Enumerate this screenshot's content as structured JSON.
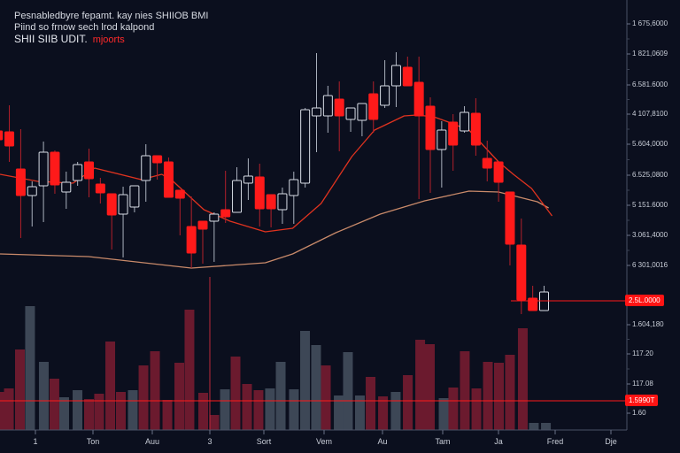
{
  "header": {
    "line1": "Pesnabledbyre fepamt. kay nies SHIIOB BMI",
    "line2": "Piind so frnow sech lrod kalpond",
    "symbol": "SHII SIIB UDIT.",
    "accent_text": "mjoorts"
  },
  "colors": {
    "background": "#0b0f1e",
    "up": "#d8dde6",
    "down": "#ff1a1a",
    "volume_up": "#3d4756",
    "volume_down": "#6b1a2e",
    "ma_short": "#e0331f",
    "ma_long": "#c98a6a",
    "price_line": "#ff1a1a"
  },
  "chart_data": {
    "type": "candlestick",
    "title": "",
    "xlabel": "",
    "ylabel": "",
    "grid": false,
    "ylim": [
      0,
      486
    ],
    "y_tick_labels": [
      "1 675,6000",
      "1 821,0609",
      "6.581.6000",
      "4 107,8100",
      "5.604,0000",
      "6.525,0800",
      "5 151.6000",
      "3.061,4000",
      "6 301,0016",
      "1.604,180",
      "117.20",
      "117.08",
      "1.60"
    ],
    "x_tick_labels": [
      "1",
      "Ton",
      "Auu",
      "3",
      "Sort",
      "Vem",
      "Au",
      "Tam",
      "Ja",
      "Fred",
      "Dje"
    ],
    "current_price_label": "2.5L.0000",
    "current_price": 146,
    "volume_level_label": "1.5990T",
    "candles": [
      [
        338,
        346,
        321,
        328
      ],
      [
        337,
        367,
        303,
        321
      ],
      [
        295,
        340,
        217,
        265
      ],
      [
        265,
        281,
        230,
        275
      ],
      [
        276,
        326,
        235,
        314
      ],
      [
        314,
        316,
        267,
        277
      ],
      [
        269,
        292,
        250,
        280
      ],
      [
        282,
        303,
        276,
        300
      ],
      [
        303,
        318,
        263,
        284
      ],
      [
        278,
        285,
        256,
        268
      ],
      [
        267,
        267,
        204,
        243
      ],
      [
        244,
        275,
        195,
        266
      ],
      [
        252,
        276,
        246,
        276
      ],
      [
        282,
        323,
        258,
        310
      ],
      [
        310,
        310,
        283,
        302
      ],
      [
        303,
        308,
        263,
        263
      ],
      [
        271,
        271,
        220,
        262
      ],
      [
        230,
        264,
        183,
        200
      ],
      [
        236,
        236,
        188,
        227
      ],
      [
        236,
        246,
        190,
        244
      ],
      [
        249,
        293,
        234,
        241
      ],
      [
        246,
        297,
        246,
        282
      ],
      [
        279,
        307,
        260,
        287
      ],
      [
        286,
        301,
        230,
        250
      ],
      [
        266,
        266,
        229,
        250
      ],
      [
        249,
        274,
        233,
        267
      ],
      [
        265,
        292,
        233,
        283
      ],
      [
        279,
        364,
        274,
        362
      ],
      [
        355,
        426,
        314,
        364
      ],
      [
        355,
        389,
        336,
        378
      ],
      [
        374,
        394,
        315,
        355
      ],
      [
        351,
        364,
        337,
        364
      ],
      [
        350,
        369,
        332,
        369
      ],
      [
        380,
        394,
        336,
        351
      ],
      [
        367,
        418,
        364,
        389
      ],
      [
        389,
        427,
        365,
        412
      ],
      [
        410,
        422,
        389,
        389
      ],
      [
        393,
        422,
        261,
        355
      ],
      [
        366,
        376,
        268,
        317
      ],
      [
        317,
        349,
        274,
        339
      ],
      [
        348,
        357,
        293,
        322
      ],
      [
        338,
        366,
        336,
        359
      ],
      [
        358,
        375,
        310,
        322
      ],
      [
        307,
        327,
        281,
        296
      ],
      [
        303,
        303,
        258,
        280
      ],
      [
        269,
        269,
        186,
        210
      ],
      [
        209,
        239,
        131,
        147
      ],
      [
        149,
        163,
        135,
        135
      ],
      [
        135,
        163,
        135,
        156
      ]
    ],
    "ma_short": [
      [
        0.18,
        289
      ],
      [
        3.5,
        281
      ],
      [
        6.6,
        279
      ],
      [
        8.5,
        296
      ],
      [
        12.6,
        283
      ],
      [
        14.4,
        289
      ],
      [
        15.4,
        281
      ],
      [
        18.1,
        249
      ],
      [
        20.4,
        236
      ],
      [
        23.5,
        224
      ],
      [
        25.9,
        228
      ],
      [
        28.4,
        256
      ],
      [
        31.1,
        309
      ],
      [
        33.1,
        339
      ],
      [
        35.7,
        355
      ],
      [
        36.8,
        356
      ],
      [
        38.3,
        354
      ],
      [
        39.6,
        348
      ],
      [
        41.4,
        339
      ],
      [
        42.7,
        321
      ],
      [
        44,
        303
      ],
      [
        45.3,
        289
      ],
      [
        46.9,
        273
      ],
      [
        48.7,
        242
      ]
    ],
    "ma_long": [
      [
        0.18,
        199
      ],
      [
        7.96,
        196
      ],
      [
        17,
        183
      ],
      [
        23.5,
        189
      ],
      [
        25.9,
        199
      ],
      [
        29.7,
        223
      ],
      [
        33.6,
        244
      ],
      [
        37.5,
        259
      ],
      [
        41.4,
        270
      ],
      [
        44,
        269
      ],
      [
        47.4,
        258
      ],
      [
        48.4,
        251
      ]
    ],
    "volume_level": 33,
    "volumes": [
      [
        0.3,
        43,
        "d"
      ],
      [
        0.96,
        47,
        "d"
      ],
      [
        1.93,
        91,
        "d"
      ],
      [
        2.82,
        140,
        "u"
      ],
      [
        4.03,
        77,
        "u"
      ],
      [
        4.96,
        58,
        "d"
      ],
      [
        5.82,
        37,
        "u"
      ],
      [
        6.99,
        45,
        "u"
      ],
      [
        8.0,
        35,
        "d"
      ],
      [
        8.89,
        41,
        "d"
      ],
      [
        9.87,
        100,
        "d"
      ],
      [
        10.8,
        43,
        "d"
      ],
      [
        11.85,
        45,
        "u"
      ],
      [
        12.79,
        73,
        "d"
      ],
      [
        13.8,
        89,
        "d"
      ],
      [
        14.89,
        34,
        "d"
      ],
      [
        15.94,
        76,
        "d"
      ],
      [
        16.83,
        136,
        "d"
      ],
      [
        18.04,
        42,
        "d"
      ],
      [
        19.01,
        17,
        "d"
      ],
      [
        19.95,
        46,
        "u"
      ],
      [
        20.88,
        83,
        "d"
      ],
      [
        21.89,
        52,
        "d"
      ],
      [
        22.9,
        45,
        "d"
      ],
      [
        23.91,
        47,
        "u"
      ],
      [
        24.85,
        77,
        "u"
      ],
      [
        26.01,
        46,
        "u"
      ],
      [
        26.99,
        112,
        "u"
      ],
      [
        27.96,
        96,
        "u"
      ],
      [
        28.82,
        73,
        "d"
      ],
      [
        29.95,
        39,
        "u"
      ],
      [
        30.76,
        88,
        "u"
      ],
      [
        31.81,
        39,
        "u"
      ],
      [
        32.75,
        60,
        "d"
      ],
      [
        33.84,
        38,
        "d"
      ],
      [
        34.96,
        43,
        "u"
      ],
      [
        36.02,
        62,
        "d"
      ],
      [
        37.11,
        102,
        "d"
      ],
      [
        37.96,
        97,
        "d"
      ],
      [
        39.17,
        36,
        "u"
      ],
      [
        40.02,
        48,
        "d"
      ],
      [
        41.03,
        89,
        "d"
      ],
      [
        42.05,
        47,
        "d"
      ],
      [
        43.06,
        77,
        "d"
      ],
      [
        44.03,
        76,
        "d"
      ],
      [
        45.0,
        85,
        "d"
      ],
      [
        46.13,
        115,
        "d"
      ],
      [
        47.1,
        8,
        "u"
      ],
      [
        48.16,
        8,
        "u"
      ]
    ]
  }
}
